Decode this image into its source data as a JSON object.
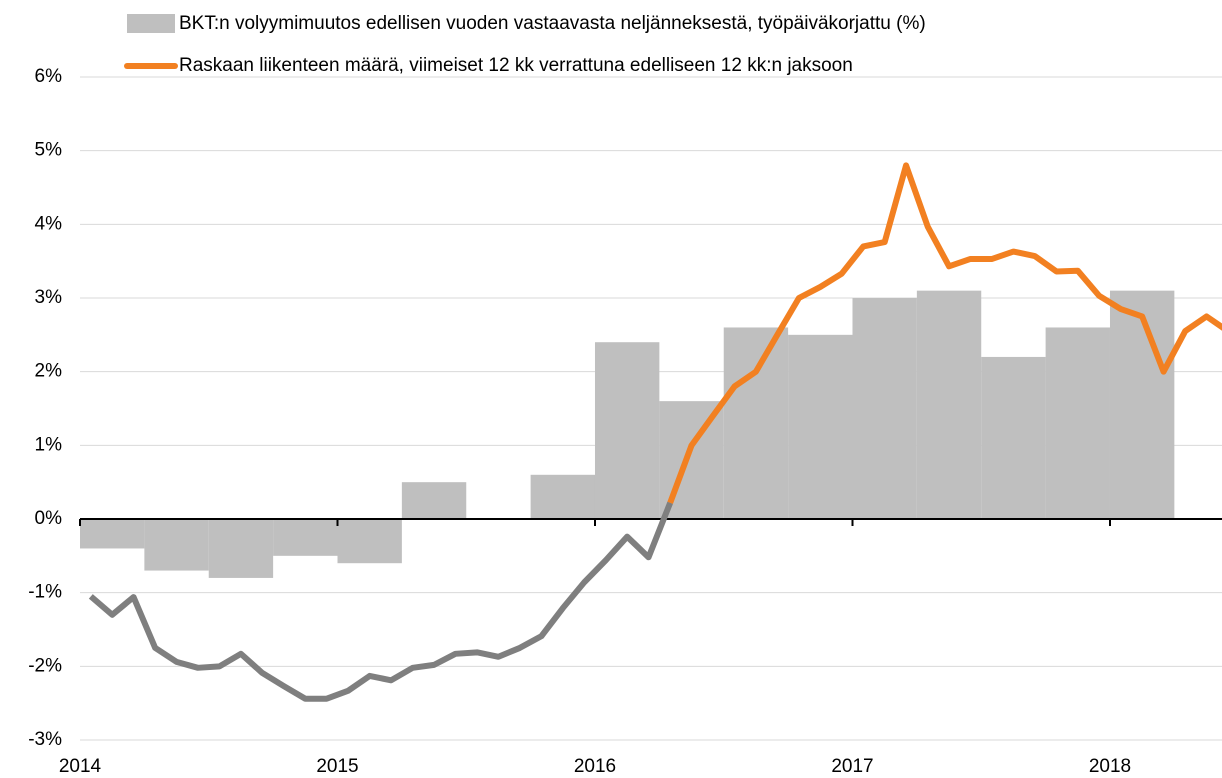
{
  "chart_data": {
    "type": "bar-line",
    "legend": "top",
    "grid": true,
    "xlim": [
      2014,
      2018.435
    ],
    "xticks": [
      2014,
      2015,
      2016,
      2017,
      2018
    ],
    "ylim": [
      -3,
      6
    ],
    "yticks": [
      {
        "value": -3,
        "label": "-3%"
      },
      {
        "value": -2,
        "label": "-2%"
      },
      {
        "value": -1,
        "label": "-1%"
      },
      {
        "value": 0,
        "label": "0%"
      },
      {
        "value": 1,
        "label": "1%"
      },
      {
        "value": 2,
        "label": "2%"
      },
      {
        "value": 3,
        "label": "3%"
      },
      {
        "value": 4,
        "label": "4%"
      },
      {
        "value": 5,
        "label": "5%"
      },
      {
        "value": 6,
        "label": "6%"
      }
    ],
    "bars": {
      "name": "BKT:n volyymimuutos edellisen vuoden vastaavasta neljänneksestä, työpäiväkorjattu (%)",
      "color": "#bfbfbf",
      "x": [
        2014,
        2014.25,
        2014.5,
        2014.75,
        2015,
        2015.25,
        2015.5,
        2015.75,
        2016,
        2016.25,
        2016.5,
        2016.75,
        2017,
        2017.25,
        2017.5,
        2017.75,
        2018
      ],
      "values": [
        -0.4,
        -0.7,
        -0.8,
        -0.5,
        -0.6,
        0.5,
        0,
        0.6,
        2.4,
        1.6,
        2.6,
        2.5,
        3.0,
        3.1,
        2.2,
        2.6,
        3.1
      ]
    },
    "series": [
      {
        "color": "#7f7f7f",
        "x": [
          2014.042,
          2014.125,
          2014.208,
          2014.292,
          2014.375,
          2014.458,
          2014.542,
          2014.625,
          2014.708,
          2014.792,
          2014.875,
          2014.958,
          2015.042,
          2015.125,
          2015.208,
          2015.292,
          2015.375,
          2015.458,
          2015.542,
          2015.625,
          2015.708,
          2015.792,
          2015.875,
          2015.958,
          2016.042,
          2016.125,
          2016.208,
          2016.292
        ],
        "values": [
          -1.05,
          -1.3,
          -1.06,
          -1.75,
          -1.94,
          -2.02,
          -2.0,
          -1.83,
          -2.09,
          -2.27,
          -2.44,
          -2.44,
          -2.33,
          -2.13,
          -2.19,
          -2.02,
          -1.98,
          -1.83,
          -1.81,
          -1.87,
          -1.75,
          -1.59,
          -1.21,
          -0.86,
          -0.56,
          -0.24,
          -0.52,
          0.22
        ]
      },
      {
        "name": "Raskaan liikenteen määrä, viimeiset 12 kk verrattuna edelliseen 12 kk:n jaksoon",
        "color": "#f28021",
        "x": [
          2016.292,
          2016.375,
          2016.458,
          2016.542,
          2016.625,
          2016.708,
          2016.792,
          2016.875,
          2016.958,
          2017.042,
          2017.125,
          2017.208,
          2017.292,
          2017.375,
          2017.458,
          2017.542,
          2017.625,
          2017.708,
          2017.792,
          2017.875,
          2017.958,
          2018.042,
          2018.125,
          2018.208,
          2018.292,
          2018.375,
          2018.458
        ],
        "values": [
          0.22,
          1.0,
          1.4,
          1.8,
          2.0,
          2.5,
          3.0,
          3.15,
          3.33,
          3.7,
          3.76,
          4.8,
          3.97,
          3.43,
          3.53,
          3.53,
          3.63,
          3.57,
          3.36,
          3.37,
          3.03,
          2.85,
          2.75,
          2.0,
          2.55,
          2.75,
          2.55
        ]
      }
    ]
  }
}
